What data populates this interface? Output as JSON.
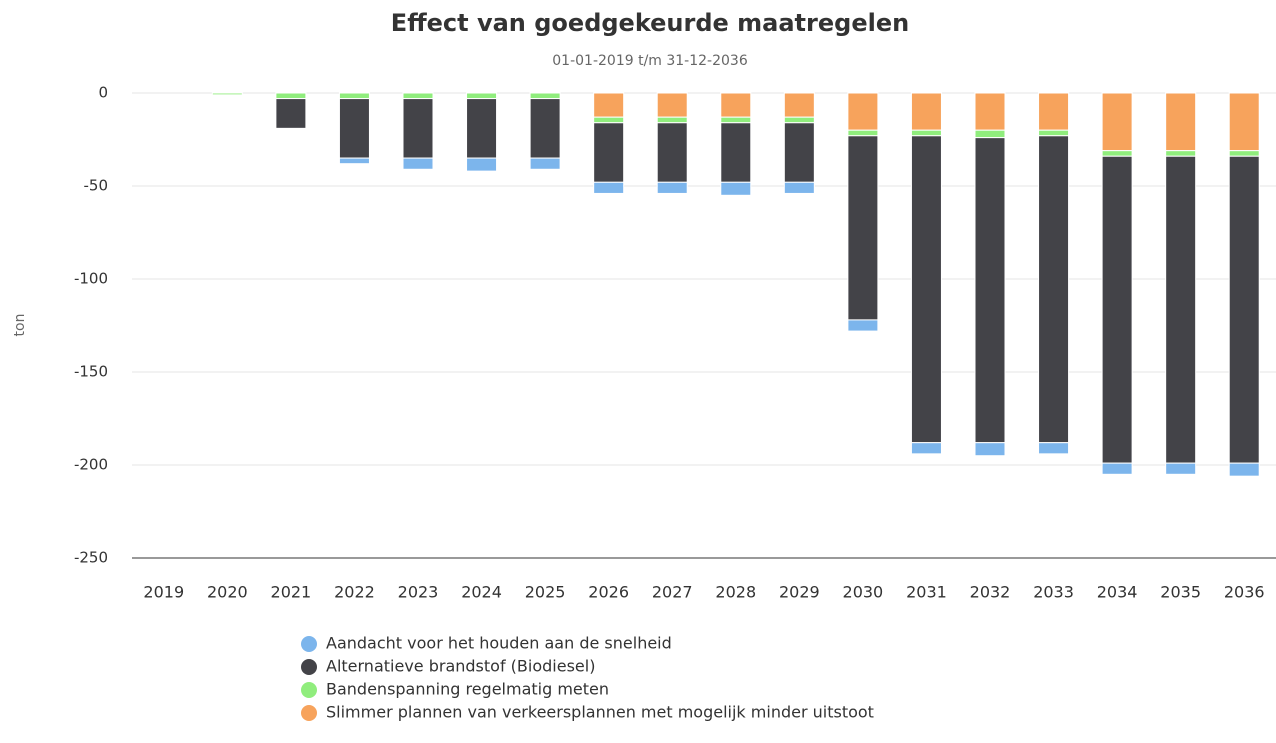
{
  "chart_data": {
    "type": "stacked_bar",
    "title": "Effect van goedgekeurde maatregelen",
    "subtitle": "01-01-2019 t/m 31-12-2036",
    "y_label": "ton",
    "categories": [
      "2019",
      "2020",
      "2021",
      "2022",
      "2023",
      "2024",
      "2025",
      "2026",
      "2027",
      "2028",
      "2029",
      "2030",
      "2031",
      "2032",
      "2033",
      "2034",
      "2035",
      "2036"
    ],
    "series": [
      {
        "name": "Aandacht voor het houden aan de snelheid",
        "color": "#7cb5ec",
        "values": [
          0,
          0,
          0,
          -3,
          -6,
          -7,
          -6,
          -6,
          -6,
          -7,
          -6,
          -6,
          -6,
          -7,
          -6,
          -6,
          -6,
          -7
        ]
      },
      {
        "name": "Alternatieve brandstof (Biodiesel)",
        "color": "#434348",
        "values": [
          0,
          0,
          -16,
          -32,
          -32,
          -32,
          -32,
          -32,
          -32,
          -32,
          -32,
          -99,
          -165,
          -164,
          -165,
          -165,
          -165,
          -165
        ]
      },
      {
        "name": "Bandenspanning regelmatig meten",
        "color": "#90ed7d",
        "values": [
          0,
          -1,
          -3,
          -3,
          -3,
          -3,
          -3,
          -3,
          -3,
          -3,
          -3,
          -3,
          -3,
          -4,
          -3,
          -3,
          -3,
          -3
        ]
      },
      {
        "name": "Slimmer plannen van verkeersplannen met mogelijk minder uitstoot",
        "color": "#f7a35c",
        "values": [
          0,
          0,
          0,
          0,
          0,
          0,
          0,
          -13,
          -13,
          -13,
          -13,
          -20,
          -20,
          -20,
          -20,
          -31,
          -31,
          -31
        ]
      }
    ],
    "ylim": [
      -250,
      0
    ],
    "yticks": [
      0,
      -50,
      -100,
      -150,
      -200,
      -250
    ],
    "grid": true
  }
}
